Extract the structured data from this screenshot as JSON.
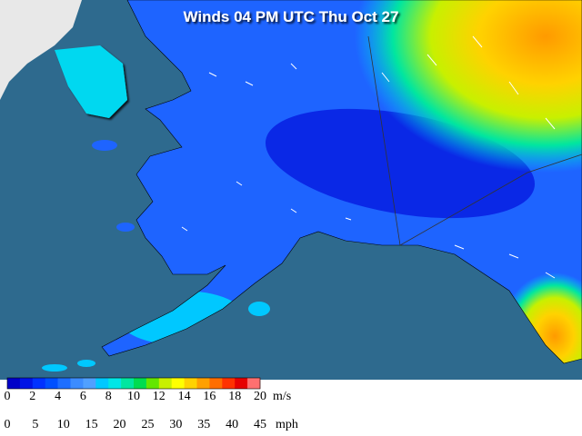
{
  "title": "Winds 04 PM UTC Thu Oct 27",
  "colorbar": {
    "colors": [
      "#0000c8",
      "#0014e6",
      "#0032ff",
      "#0050ff",
      "#1e6eff",
      "#3c8cff",
      "#50a0ff",
      "#00c8ff",
      "#00e6e6",
      "#00e6a0",
      "#00dc50",
      "#64e600",
      "#c8f000",
      "#ffff00",
      "#ffd200",
      "#ffa000",
      "#ff6e00",
      "#ff3200",
      "#e60000",
      "#ff7070"
    ],
    "ms": {
      "ticks": [
        0,
        2,
        4,
        6,
        8,
        10,
        12,
        14,
        16,
        18,
        20
      ],
      "unit": "m/s"
    },
    "mph": {
      "ticks": [
        0,
        5,
        10,
        15,
        20,
        25,
        30,
        35,
        40,
        45
      ],
      "unit": "mph"
    }
  }
}
